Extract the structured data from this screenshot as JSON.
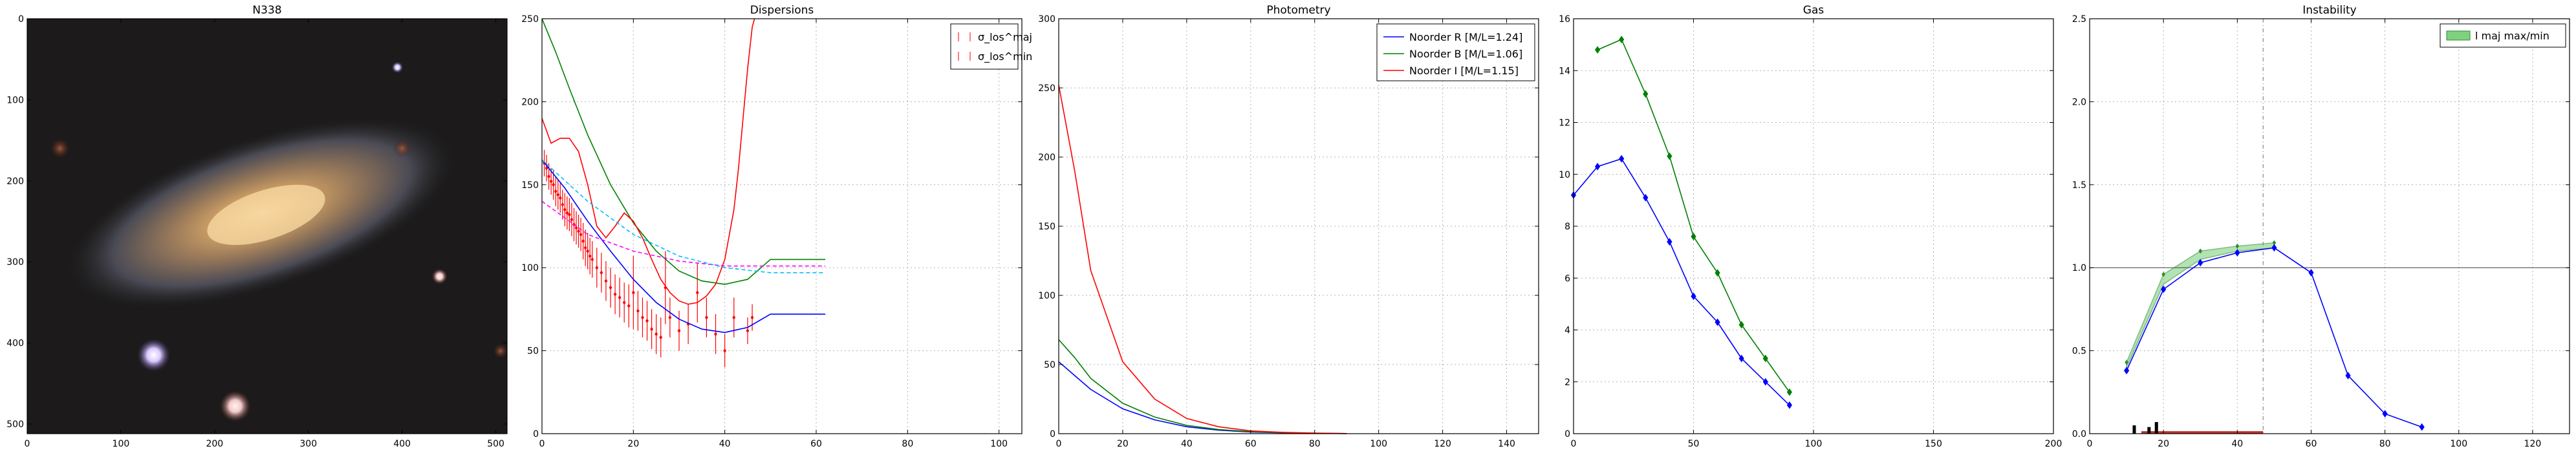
{
  "chart_data": [
    {
      "id": "image",
      "type": "image",
      "title": "N338",
      "xlim": [
        0,
        512
      ],
      "ylim": [
        512,
        0
      ],
      "xticks": [
        0,
        100,
        200,
        300,
        400,
        500
      ],
      "yticks": [
        0,
        100,
        200,
        300,
        400,
        500
      ]
    },
    {
      "id": "dispersions",
      "type": "line",
      "title": "Dispersions",
      "xlim": [
        0,
        105
      ],
      "ylim": [
        0,
        250
      ],
      "xticks": [
        0,
        20,
        40,
        60,
        80,
        100
      ],
      "yticks": [
        0,
        50,
        100,
        150,
        200,
        250
      ],
      "grid": true,
      "legend": [
        "σ_los^maj",
        "σ_los^min"
      ],
      "legend_position": "top-right",
      "series": [
        {
          "color": "#0000ff",
          "dash": "",
          "x": [
            0,
            5,
            10,
            15,
            20,
            25,
            30,
            35,
            40,
            45,
            50,
            55,
            62
          ],
          "y": [
            165,
            148,
            128,
            110,
            93,
            79,
            69,
            63,
            61,
            64,
            72,
            72,
            72
          ]
        },
        {
          "color": "#008000",
          "dash": "",
          "x": [
            0,
            3,
            6,
            10,
            15,
            20,
            25,
            30,
            35,
            40,
            45,
            50,
            55,
            62
          ],
          "y": [
            250,
            230,
            208,
            180,
            150,
            127,
            110,
            98,
            92,
            90,
            93,
            105,
            105,
            105
          ]
        },
        {
          "color": "#ff0000",
          "dash": "",
          "x": [
            0,
            2,
            4,
            6,
            8,
            10,
            12,
            14,
            16,
            18,
            20,
            22,
            24,
            26,
            28,
            30,
            32,
            34,
            36,
            38,
            40,
            42,
            43,
            44,
            45,
            46,
            46.5
          ],
          "y": [
            190,
            175,
            178,
            178,
            170,
            150,
            125,
            118,
            125,
            133,
            128,
            118,
            105,
            93,
            85,
            80,
            78,
            79,
            83,
            90,
            105,
            135,
            160,
            190,
            220,
            245,
            250
          ]
        },
        {
          "color": "#ff00ff",
          "dash": "6,4",
          "x": [
            0,
            10,
            20,
            30,
            40,
            50,
            62
          ],
          "y": [
            140,
            120,
            110,
            104,
            101,
            101,
            101
          ]
        },
        {
          "color": "#00bfff",
          "dash": "6,4",
          "x": [
            0,
            10,
            20,
            30,
            40,
            50,
            62
          ],
          "y": [
            165,
            140,
            120,
            107,
            100,
            97,
            97
          ]
        }
      ],
      "points": {
        "color": "#ff0000",
        "x": [
          0.5,
          1,
          1.5,
          2,
          2.5,
          3,
          3.5,
          4,
          4.5,
          5,
          5.5,
          6,
          6.5,
          7,
          7.5,
          8,
          8.5,
          9,
          9.5,
          10,
          10.5,
          11,
          12,
          13,
          14,
          15,
          16,
          17,
          18,
          19,
          20,
          21,
          22,
          23,
          24,
          25,
          26,
          27,
          28,
          30,
          32,
          34,
          36,
          38,
          40,
          42,
          45,
          46
        ],
        "y": [
          163,
          160,
          155,
          152,
          150,
          146,
          144,
          142,
          138,
          135,
          133,
          132,
          129,
          126,
          124,
          122,
          120,
          116,
          112,
          110,
          107,
          105,
          100,
          97,
          92,
          88,
          84,
          82,
          79,
          77,
          85,
          74,
          70,
          68,
          63,
          60,
          58,
          88,
          70,
          62,
          66,
          85,
          70,
          60,
          50,
          70,
          62,
          70
        ],
        "err": [
          8,
          8,
          8,
          8,
          9,
          9,
          9,
          9,
          9,
          10,
          10,
          10,
          10,
          10,
          10,
          10,
          10,
          11,
          11,
          11,
          11,
          11,
          12,
          12,
          12,
          12,
          12,
          12,
          12,
          13,
          22,
          12,
          12,
          12,
          12,
          12,
          12,
          22,
          12,
          12,
          12,
          18,
          12,
          12,
          10,
          12,
          8,
          8
        ]
      }
    },
    {
      "id": "photometry",
      "type": "line",
      "title": "Photometry",
      "xlim": [
        0,
        150
      ],
      "ylim": [
        0,
        300
      ],
      "xticks": [
        0,
        20,
        40,
        60,
        80,
        100,
        120,
        140
      ],
      "yticks": [
        0,
        50,
        100,
        150,
        200,
        250,
        300
      ],
      "grid": true,
      "legend_position": "top-right",
      "series": [
        {
          "name": "Noorder R [M/L=1.24]",
          "color": "#0000ff",
          "x": [
            0,
            5,
            10,
            20,
            30,
            40,
            50,
            60,
            70,
            80,
            90
          ],
          "y": [
            52,
            42,
            32,
            18,
            10,
            5,
            2.5,
            1.2,
            0.6,
            0.3,
            0.1
          ]
        },
        {
          "name": "Noorder B [M/L=1.06]",
          "color": "#008000",
          "x": [
            0,
            5,
            10,
            20,
            30,
            40,
            50,
            60,
            70,
            80,
            90
          ],
          "y": [
            68,
            55,
            40,
            22,
            12,
            6,
            3,
            1.5,
            0.7,
            0.3,
            0.1
          ]
        },
        {
          "name": "Noorder I [M/L=1.15]",
          "color": "#ff0000",
          "x": [
            0,
            5,
            10,
            20,
            30,
            40,
            50,
            60,
            70,
            80,
            90
          ],
          "y": [
            252,
            190,
            118,
            52,
            25,
            11,
            5,
            2,
            1,
            0.4,
            0.1
          ]
        }
      ]
    },
    {
      "id": "gas",
      "type": "line",
      "title": "Gas",
      "xlim": [
        0,
        200
      ],
      "ylim": [
        0,
        16
      ],
      "xticks": [
        0,
        50,
        100,
        150,
        200
      ],
      "yticks": [
        0,
        2,
        4,
        6,
        8,
        10,
        12,
        14,
        16
      ],
      "grid": true,
      "series": [
        {
          "color": "#0000ff",
          "x": [
            0,
            10,
            20,
            30,
            40,
            50,
            60,
            70,
            80,
            90
          ],
          "y": [
            9.2,
            10.3,
            10.6,
            9.1,
            7.4,
            5.3,
            4.3,
            2.9,
            2.0,
            1.1
          ]
        },
        {
          "color": "#008000",
          "x": [
            10,
            20,
            30,
            40,
            50,
            60,
            70,
            80,
            90
          ],
          "y": [
            14.8,
            15.2,
            13.1,
            10.7,
            7.6,
            6.2,
            4.2,
            2.9,
            1.6
          ]
        }
      ]
    },
    {
      "id": "instability",
      "type": "line",
      "title": "Instability",
      "xlim": [
        0,
        130
      ],
      "ylim": [
        0,
        2.5
      ],
      "xticks": [
        0,
        20,
        40,
        60,
        80,
        100,
        120
      ],
      "yticks": [
        0.0,
        0.5,
        1.0,
        1.5,
        2.0,
        2.5
      ],
      "grid": true,
      "legend": [
        "l maj max/min"
      ],
      "legend_position": "top-right",
      "hline": 1.0,
      "vline": 47,
      "band_upper": {
        "x": [
          10,
          20,
          30,
          40,
          50
        ],
        "y": [
          0.43,
          0.96,
          1.1,
          1.13,
          1.15
        ]
      },
      "band_lower": {
        "x": [
          10,
          20,
          30,
          40,
          50
        ],
        "y": [
          0.4,
          0.9,
          1.05,
          1.1,
          1.12
        ]
      },
      "series": [
        {
          "color": "#0000ff",
          "x": [
            10,
            20,
            30,
            40,
            50,
            60,
            70,
            80,
            90
          ],
          "y": [
            0.38,
            0.87,
            1.03,
            1.09,
            1.12,
            0.97,
            0.35,
            0.12,
            0.04
          ]
        }
      ],
      "bottom_bars": {
        "red_start": 14,
        "red_end": 47,
        "black": [
          {
            "x": 12,
            "h": 0.05
          },
          {
            "x": 16,
            "h": 0.04
          },
          {
            "x": 18,
            "h": 0.07
          }
        ]
      }
    }
  ]
}
